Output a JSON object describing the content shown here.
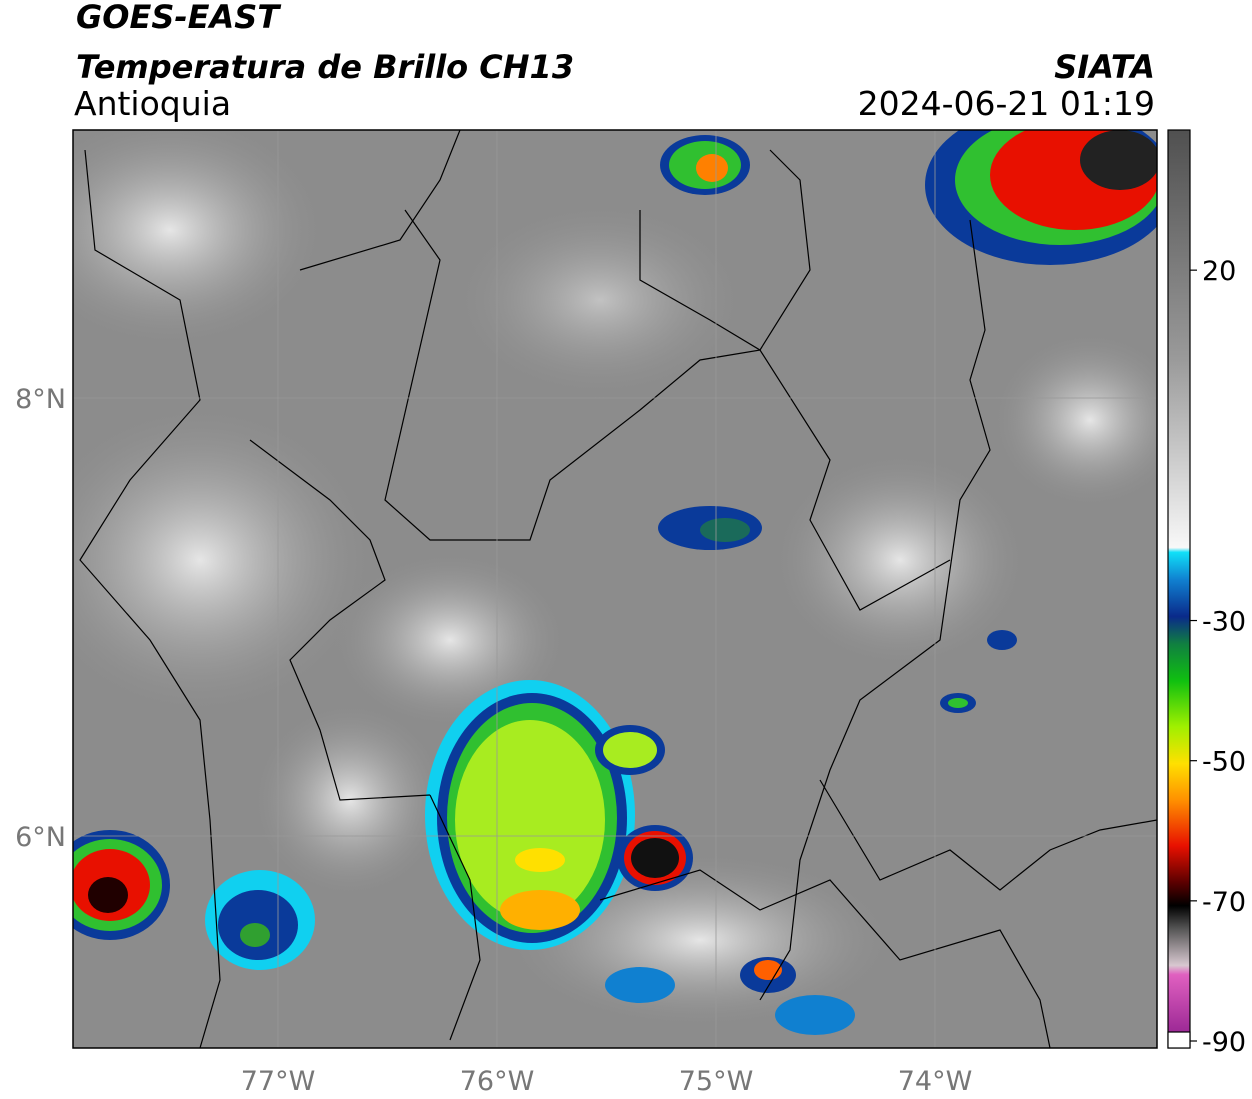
{
  "header": {
    "satellite": "GOES-EAST",
    "product": "Temperatura de Brillo CH13",
    "region": "Antioquia",
    "source": "SIATA",
    "datetime": "2024-06-21 01:19"
  },
  "map": {
    "lat_ticks": [
      "8°N",
      "6°N"
    ],
    "lon_ticks": [
      "77°W",
      "76°W",
      "75°W",
      "74°W"
    ]
  },
  "colorbar": {
    "lim": [
      -90,
      40
    ],
    "ticks": [
      20,
      -30,
      -50,
      -70,
      -90
    ]
  }
}
